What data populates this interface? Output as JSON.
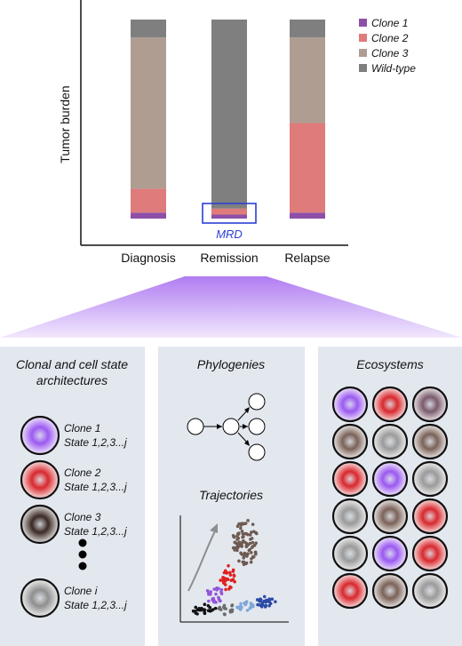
{
  "chart_data": {
    "type": "bar",
    "stacked": true,
    "ylabel": "Tumor burden",
    "xlabel": "",
    "categories": [
      "Diagnosis",
      "Remission",
      "Relapse"
    ],
    "ylim": [
      0,
      100
    ],
    "grid": false,
    "legend_position": "top-right",
    "series": [
      {
        "name": "Clone 1",
        "color": "#8e4fa8",
        "values": [
          3,
          2,
          3
        ]
      },
      {
        "name": "Clone 2",
        "color": "#df7b7b",
        "values": [
          12,
          3,
          45
        ]
      },
      {
        "name": "Clone 3",
        "color": "#b09d91",
        "values": [
          76,
          0,
          43
        ]
      },
      {
        "name": "Wild-type",
        "color": "#7f7f7f",
        "values": [
          9,
          95,
          9
        ]
      }
    ],
    "annotations": [
      {
        "label": "MRD",
        "category": "Remission",
        "color": "#2b3fd4"
      }
    ]
  },
  "panels": {
    "left": {
      "title_line1": "Clonal and cell state",
      "title_line2": "architectures",
      "items": [
        {
          "clone": "Clone 1",
          "state": "State 1,2,3...j",
          "color": "#9b59f0"
        },
        {
          "clone": "Clone 2",
          "state": "State 1,2,3...j",
          "color": "#d8282d"
        },
        {
          "clone": "Clone 3",
          "state": "State 1,2,3...j",
          "color": "#3a2824"
        },
        {
          "clone": "Clone i",
          "state": "State 1,2,3...j",
          "color": "#8f8f8f"
        }
      ]
    },
    "middle": {
      "title1": "Phylogenies",
      "title2": "Trajectories"
    },
    "right": {
      "title": "Ecosystems",
      "grid": [
        [
          "purple",
          "red",
          "mauve"
        ],
        [
          "brown",
          "gray",
          "brown"
        ],
        [
          "red",
          "purple",
          "gray"
        ],
        [
          "gray",
          "brown",
          "red"
        ],
        [
          "gray",
          "purple",
          "red"
        ],
        [
          "red",
          "brown",
          "gray"
        ]
      ],
      "colors": {
        "purple": "#9b59f0",
        "red": "#d8282d",
        "mauve": "#7a5a6c",
        "brown": "#7a6258",
        "gray": "#9a9a9a"
      }
    }
  }
}
